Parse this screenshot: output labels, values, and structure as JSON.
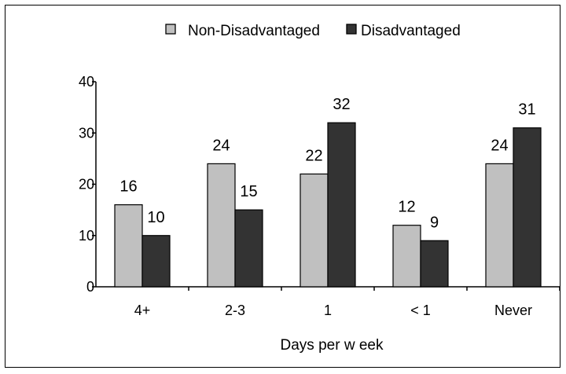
{
  "chart_data": {
    "type": "bar",
    "title": "",
    "xlabel": "Days per w eek",
    "ylabel": "",
    "ylim": [
      0,
      40
    ],
    "yticks": [
      0,
      10,
      20,
      30,
      40
    ],
    "categories": [
      "4+",
      "2-3",
      "1",
      "< 1",
      "Never"
    ],
    "series": [
      {
        "name": "Non-Disadvantaged",
        "values": [
          16,
          24,
          22,
          12,
          24
        ],
        "color": "#c0c0c0"
      },
      {
        "name": "Disadvantaged",
        "values": [
          10,
          15,
          32,
          9,
          31
        ],
        "color": "#333333"
      }
    ],
    "legend": "top-center",
    "grid": false
  }
}
